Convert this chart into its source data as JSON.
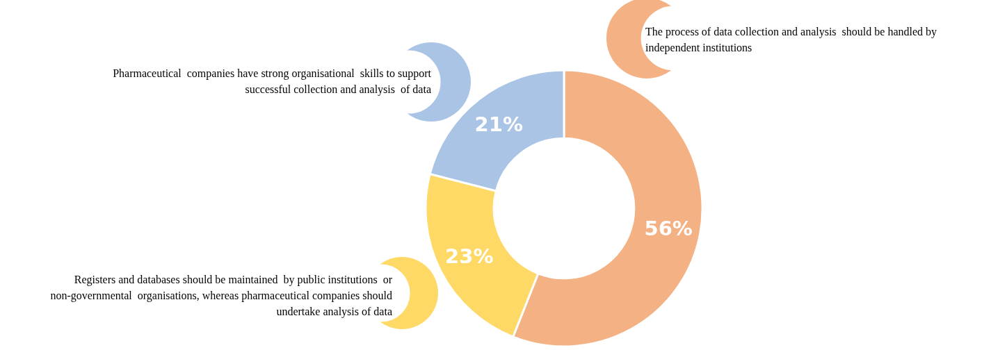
{
  "chart_data": {
    "type": "donut",
    "categories": [
      "The process of data collection and analysis  should be handled by independent institutions",
      "Registers and databases should be maintained  by public institutions  or non-governmental  organisations, whereas pharmaceutical companies should undertake analysis of data",
      "Pharmaceutical  companies have strong organisational  skills to support successful collection and analysis  of data"
    ],
    "values": [
      56,
      23,
      21
    ],
    "colors": [
      "#f4b183",
      "#ffd966",
      "#a9c4e5"
    ],
    "value_labels": [
      "56%",
      "23%",
      "21%"
    ],
    "legend": false
  }
}
